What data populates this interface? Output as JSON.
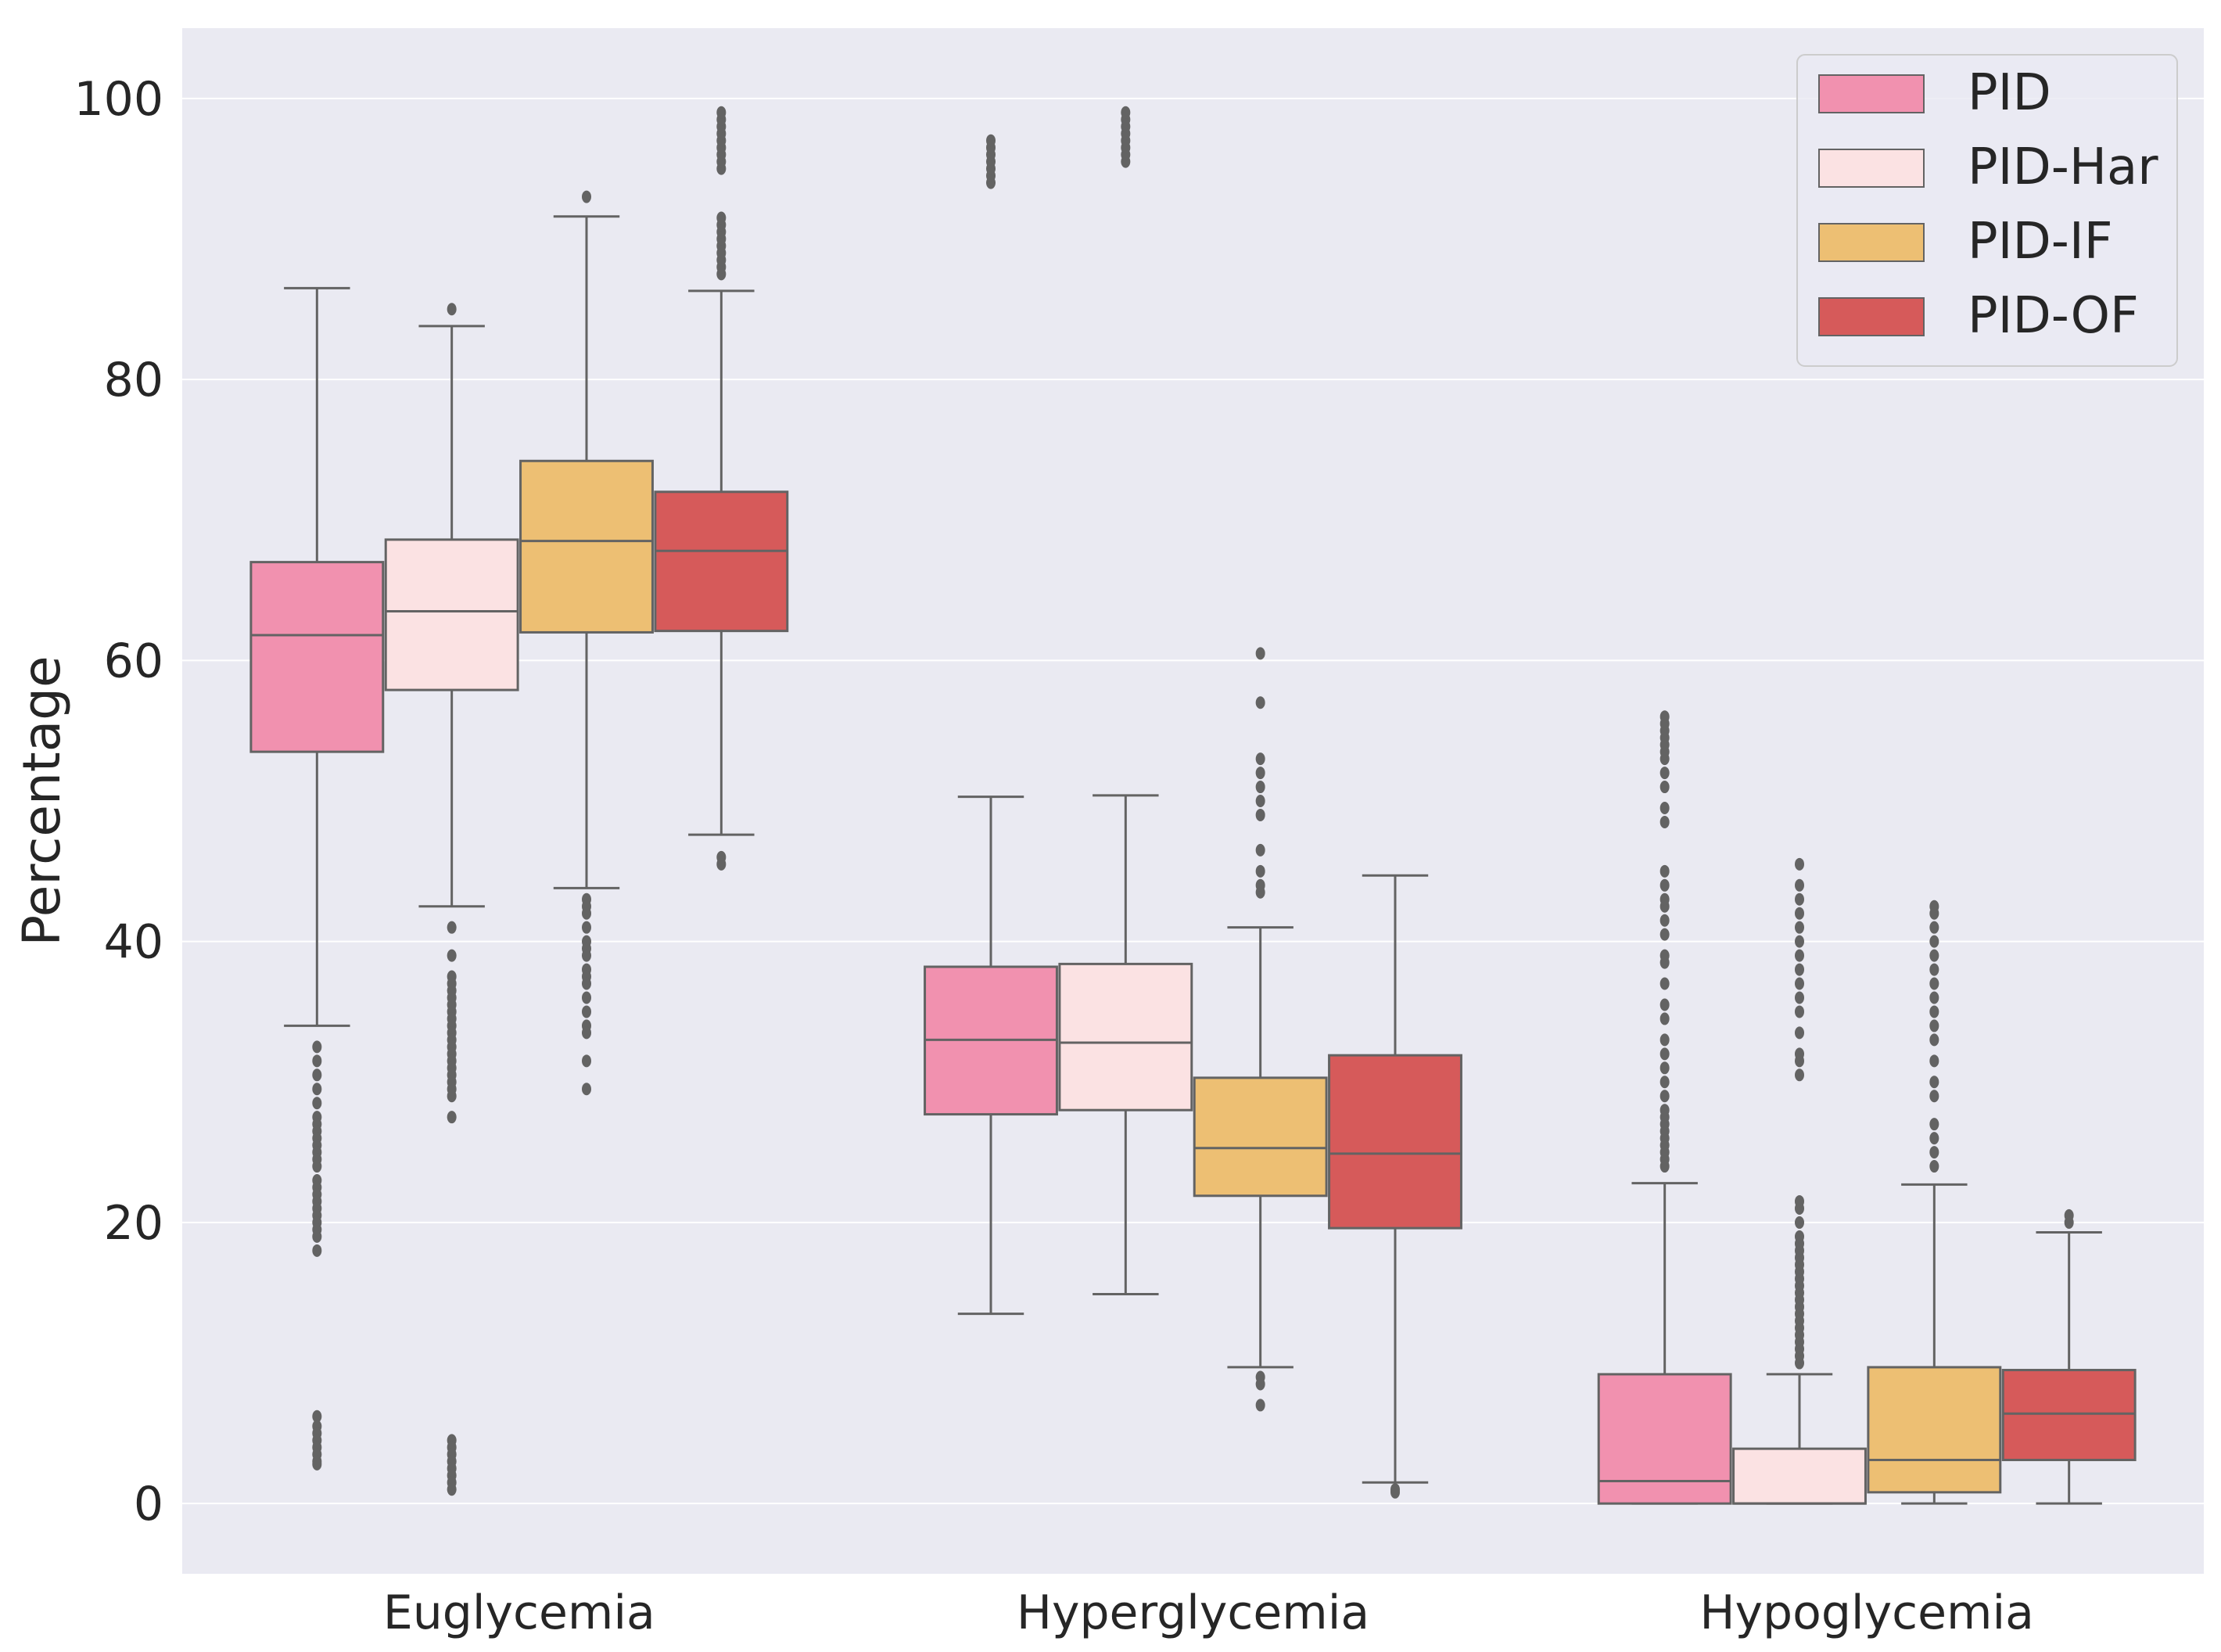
{
  "chart_data": {
    "type": "box",
    "title": "",
    "xlabel": "",
    "ylabel": "Percentage",
    "ylim": [
      -5,
      105
    ],
    "yticks": [
      0,
      20,
      40,
      60,
      80,
      100
    ],
    "grid": true,
    "legend_position": "top-right",
    "categories": [
      "Euglycemia",
      "Hyperglycemia",
      "Hypoglycemia"
    ],
    "series": [
      {
        "name": "PID",
        "color": "#F191AF",
        "boxes": [
          {
            "whisker_low": 34.0,
            "q1": 53.5,
            "median": 61.8,
            "q3": 67.0,
            "whisker_high": 86.5,
            "outliers": [
              32.5,
              31.5,
              30.5,
              29.5,
              28.5,
              27.5,
              27.0,
              26.5,
              26.0,
              25.5,
              25.0,
              24.5,
              24.0,
              23.0,
              22.5,
              22.0,
              21.5,
              21.0,
              20.5,
              20.0,
              19.5,
              19.0,
              18.0,
              6.2,
              5.5,
              5.0,
              4.5,
              4.0,
              3.5,
              3.0,
              2.8
            ]
          },
          {
            "whisker_low": 13.5,
            "q1": 27.7,
            "median": 33.0,
            "q3": 38.2,
            "whisker_high": 50.3,
            "outliers": [
              94.0,
              94.5,
              95.0,
              95.5,
              96.0,
              96.5,
              97.0
            ]
          },
          {
            "whisker_low": 0.0,
            "q1": 0.0,
            "median": 1.6,
            "q3": 9.2,
            "whisker_high": 22.8,
            "outliers": [
              24.0,
              24.5,
              25.0,
              25.5,
              26.0,
              26.5,
              27.0,
              27.5,
              28.0,
              29.0,
              30.0,
              31.0,
              32.0,
              33.0,
              34.5,
              35.5,
              37.0,
              38.5,
              39.0,
              40.5,
              41.5,
              42.5,
              43.0,
              44.0,
              45.0,
              48.5,
              49.5,
              51.0,
              52.0,
              53.0,
              53.5,
              54.0,
              54.5,
              55.0,
              55.5,
              56.0
            ]
          }
        ]
      },
      {
        "name": "PID-Har",
        "color": "#FBE2E3",
        "boxes": [
          {
            "whisker_low": 42.5,
            "q1": 57.9,
            "median": 63.5,
            "q3": 68.6,
            "whisker_high": 83.8,
            "outliers": [
              85.0,
              41.0,
              39.0,
              37.5,
              37.0,
              36.5,
              36.0,
              35.5,
              35.0,
              34.5,
              34.0,
              33.5,
              33.0,
              32.5,
              32.0,
              31.5,
              31.0,
              30.5,
              30.0,
              29.5,
              29.0,
              27.5,
              4.5,
              4.0,
              3.5,
              3.0,
              2.5,
              2.0,
              1.5,
              1.0
            ]
          },
          {
            "whisker_low": 14.9,
            "q1": 28.0,
            "median": 32.8,
            "q3": 38.4,
            "whisker_high": 50.4,
            "outliers": [
              95.5,
              96.0,
              96.5,
              97.0,
              97.5,
              98.0,
              98.5,
              99.0
            ]
          },
          {
            "whisker_low": 0.0,
            "q1": 0.0,
            "median": 0.0,
            "q3": 3.9,
            "whisker_high": 9.2,
            "outliers": [
              10.0,
              10.5,
              11.0,
              11.5,
              12.0,
              12.5,
              13.0,
              13.5,
              14.0,
              14.5,
              15.0,
              15.5,
              16.0,
              16.5,
              17.0,
              17.5,
              18.0,
              18.5,
              19.0,
              20.0,
              21.0,
              21.5,
              30.5,
              31.5,
              32.0,
              33.5,
              35.0,
              36.0,
              37.0,
              38.0,
              39.0,
              40.0,
              41.0,
              42.0,
              43.0,
              44.0,
              45.5
            ]
          }
        ]
      },
      {
        "name": "PID-IF",
        "color": "#EDBF73",
        "boxes": [
          {
            "whisker_low": 43.8,
            "q1": 62.0,
            "median": 68.5,
            "q3": 74.2,
            "whisker_high": 91.6,
            "outliers": [
              93.0,
              43.0,
              42.5,
              42.0,
              41.0,
              40.0,
              39.5,
              39.0,
              38.0,
              37.5,
              37.0,
              36.0,
              35.0,
              34.0,
              33.5,
              31.5,
              29.5
            ]
          },
          {
            "whisker_low": 9.7,
            "q1": 21.9,
            "median": 25.3,
            "q3": 30.3,
            "whisker_high": 41.0,
            "outliers": [
              9.0,
              8.5,
              7.0,
              43.5,
              44.0,
              45.0,
              46.5,
              49.0,
              50.0,
              51.0,
              52.0,
              53.0,
              57.0,
              60.5
            ]
          },
          {
            "whisker_low": 0.0,
            "q1": 0.8,
            "median": 3.1,
            "q3": 9.7,
            "whisker_high": 22.7,
            "outliers": [
              24.0,
              25.0,
              26.0,
              27.0,
              29.0,
              30.0,
              31.5,
              33.0,
              34.0,
              35.0,
              36.0,
              37.0,
              38.0,
              39.0,
              40.0,
              41.0,
              42.0,
              42.5
            ]
          }
        ]
      },
      {
        "name": "PID-OF",
        "color": "#D65A5A",
        "boxes": [
          {
            "whisker_low": 47.6,
            "q1": 62.1,
            "median": 67.8,
            "q3": 72.0,
            "whisker_high": 86.3,
            "outliers": [
              46.0,
              45.5,
              87.5,
              88.0,
              88.5,
              89.0,
              89.5,
              90.0,
              90.5,
              91.0,
              91.5,
              95.0,
              95.5,
              96.0,
              96.5,
              97.0,
              97.5,
              98.0,
              98.5,
              99.0
            ]
          },
          {
            "whisker_low": 1.5,
            "q1": 19.6,
            "median": 24.9,
            "q3": 31.9,
            "whisker_high": 44.7,
            "outliers": [
              0.8,
              1.0
            ]
          },
          {
            "whisker_low": 0.0,
            "q1": 3.1,
            "median": 6.4,
            "q3": 9.5,
            "whisker_high": 19.3,
            "outliers": [
              20.0,
              20.5
            ]
          }
        ]
      }
    ]
  }
}
